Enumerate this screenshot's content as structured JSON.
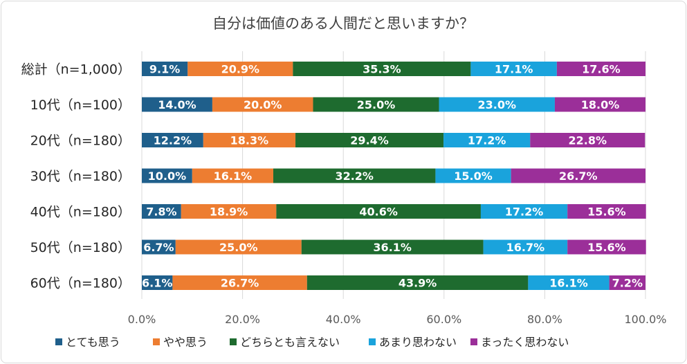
{
  "chart_data": {
    "type": "bar",
    "orientation": "horizontal",
    "stacked": "percent",
    "title": "自分は価値のある人間だと思いますか？",
    "categories": [
      "総計（n=1,000）",
      "10代（n=100）",
      "20代（n=180）",
      "30代（n=180）",
      "40代（n=180）",
      "50代（n=180）",
      "60代（n=180）"
    ],
    "series": [
      {
        "name": "とても思う",
        "color": "#1f5f8b",
        "values": [
          9.1,
          14.0,
          12.2,
          10.0,
          7.8,
          6.7,
          6.1
        ],
        "labels": [
          "9.1%",
          "14.0%",
          "12.2%",
          "10.0%",
          "7.8%",
          "6.7%",
          "6.1%"
        ]
      },
      {
        "name": "やや思う",
        "color": "#ed7d31",
        "values": [
          20.9,
          20.0,
          18.3,
          16.1,
          18.9,
          25.0,
          26.7
        ],
        "labels": [
          "20.9%",
          "20.0%",
          "18.3%",
          "16.1%",
          "18.9%",
          "25.0%",
          "26.7%"
        ]
      },
      {
        "name": "どちらとも言えない",
        "color": "#1e6b2f",
        "values": [
          35.3,
          25.0,
          29.4,
          32.2,
          40.6,
          36.1,
          43.9
        ],
        "labels": [
          "35.3%",
          "25.0%",
          "29.4%",
          "32.2%",
          "40.6%",
          "36.1%",
          "43.9%"
        ]
      },
      {
        "name": "あまり思わない",
        "color": "#1aa3dc",
        "values": [
          17.1,
          23.0,
          17.2,
          15.0,
          17.2,
          16.7,
          16.1
        ],
        "labels": [
          "17.1%",
          "23.0%",
          "17.2%",
          "15.0%",
          "17.2%",
          "16.7%",
          "16.1%"
        ]
      },
      {
        "name": "まったく思わない",
        "color": "#9b2f99",
        "values": [
          17.6,
          18.0,
          22.8,
          26.7,
          15.6,
          15.6,
          7.2
        ],
        "labels": [
          "17.6%",
          "18.0%",
          "22.8%",
          "26.7%",
          "15.6%",
          "15.6%",
          "7.2%"
        ]
      }
    ],
    "xlim": [
      0,
      100
    ],
    "xticks": [
      "0.0%",
      "20.0%",
      "40.0%",
      "60.0%",
      "80.0%",
      "100.0%"
    ],
    "grid": true,
    "legend": "bottom"
  }
}
